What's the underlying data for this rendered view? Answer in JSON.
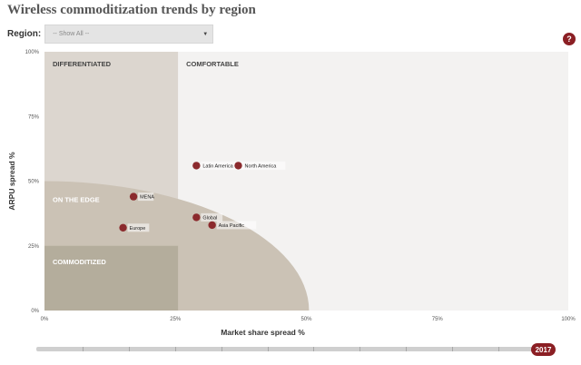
{
  "title": "Wireless commoditization trends by region",
  "filter": {
    "label": "Region:",
    "selected": "-- Show All --"
  },
  "help": {
    "glyph": "?"
  },
  "timeline": {
    "year_label": "2017",
    "value": "2017",
    "ticks": 11
  },
  "colors": {
    "marker": "#8b2a2d",
    "differentiated": "#dcd6cf",
    "comfortable": "#f3f2f1",
    "on_the_edge": "#cbc2b5",
    "commoditized": "#b4ad9c",
    "accent": "#8b1f24"
  },
  "chart_data": {
    "type": "scatter",
    "xlabel": "Market share spread %",
    "ylabel": "ARPU spread %",
    "xlim": [
      0,
      100
    ],
    "ylim": [
      0,
      100
    ],
    "xticks": [
      {
        "value": 0,
        "label": "0%"
      },
      {
        "value": 25,
        "label": "25%"
      },
      {
        "value": 50,
        "label": "50%"
      },
      {
        "value": 75,
        "label": "75%"
      },
      {
        "value": 100,
        "label": "100%"
      }
    ],
    "yticks": [
      {
        "value": 0,
        "label": "0%"
      },
      {
        "value": 25,
        "label": "25%"
      },
      {
        "value": 50,
        "label": "50%"
      },
      {
        "value": 75,
        "label": "75%"
      },
      {
        "value": 100,
        "label": "100%"
      }
    ],
    "zones": [
      {
        "key": "differentiated",
        "label": "DIFFERENTIATED",
        "x": [
          0,
          25.5
        ],
        "y": [
          0,
          100
        ]
      },
      {
        "key": "comfortable",
        "label": "COMFORTABLE",
        "x": [
          25.5,
          100
        ],
        "y": [
          0,
          100
        ]
      },
      {
        "key": "on_the_edge",
        "label": "ON THE EDGE",
        "shape": "quarter-ellipse",
        "rx": 50.5,
        "ry": 50
      },
      {
        "key": "commoditized",
        "label": "COMMODITIZED",
        "x": [
          0,
          25.5
        ],
        "y": [
          0,
          25
        ]
      }
    ],
    "points": [
      {
        "name": "Latin America",
        "x": 29,
        "y": 56
      },
      {
        "name": "North America",
        "x": 37,
        "y": 56
      },
      {
        "name": "MENA",
        "x": 17,
        "y": 44
      },
      {
        "name": "Global",
        "x": 29,
        "y": 36
      },
      {
        "name": "Asia Pacific",
        "x": 32,
        "y": 33
      },
      {
        "name": "Europe",
        "x": 15,
        "y": 32
      }
    ]
  }
}
